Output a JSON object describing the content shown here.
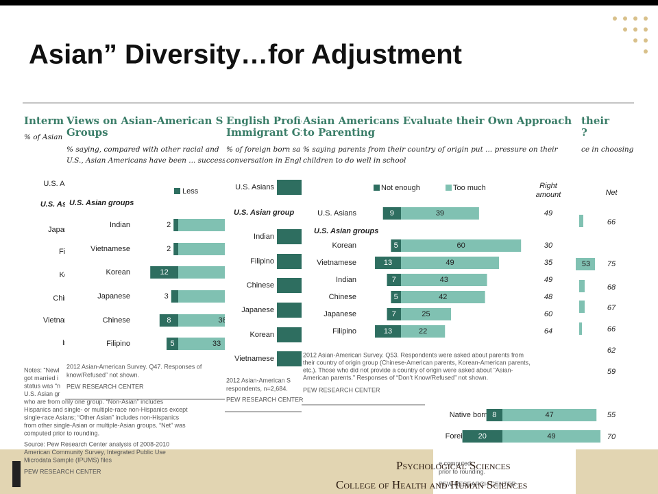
{
  "slide": {
    "title": "Asian” Diversity…for Adjustment",
    "footer_line1": "Psychological Sciences",
    "footer_line2": "College of Health and Human Sciences"
  },
  "background_panel": {
    "title_fragment": "Interm",
    "subtitle_fragment": "% of Asian i",
    "rows": [
      "U.S. As",
      "U.S. Asi",
      "Japan",
      "Fili",
      "Ko",
      "Chin",
      "Vietnan",
      "In"
    ],
    "notes": [
      "Notes: “Newl",
      "got married i",
      "status was “n",
      "U.S. Asian gr",
      "who are from only one group. “Non-Asian” includes",
      "Hispanics and single- or multiple-race non-Hispanics except",
      "single-race Asians; “Other Asian” includes non-Hispanics",
      "from other single-Asian or multiple-Asian groups. “Net” was",
      "computed prior to rounding."
    ],
    "source": [
      "Source: Pew Research Center analysis of 2008-2010",
      "American Community Survey, Integrated Public Use",
      "Microdata Sample (IPUMS) files"
    ],
    "credit": "PEW RESEARCH CENTER",
    "right_title": [
      "their",
      "?"
    ],
    "right_subtitle": "ce in choosing",
    "net_label": "Net",
    "net_values": [
      66,
      75,
      68,
      67,
      66,
      62,
      59,
      55,
      70
    ],
    "bar_fragment": 53,
    "bottom_notes": [
      "e computed",
      "prior to rounding."
    ],
    "bottom_credit": "PEW RESEARCH CENTER"
  },
  "english_panel": {
    "title": [
      "English Profic",
      "Immigrant Gr"
    ],
    "subtitle": [
      "% of foreign born sa",
      "conversation in Engl"
    ],
    "rows": [
      "U.S. Asians",
      "U.S. Asian group",
      "Indian",
      "Filipino",
      "Chinese",
      "Japanese",
      "Korean",
      "Vietnamese"
    ],
    "notes": [
      "2012 Asian-American S",
      "respondents, n=2,684."
    ],
    "credit": "PEW RESEARCH CENTER"
  },
  "chart_data": [
    {
      "type": "bar",
      "orientation": "horizontal",
      "title": [
        "Asian Americans Evaluate their Own Approach",
        "to Parenting"
      ],
      "subtitle": [
        "% saying parents from their country of origin put ... pressure on their",
        "children to do well in school"
      ],
      "categories": [
        "U.S. Asians",
        "Korean",
        "Vietnamese",
        "Indian",
        "Chinese",
        "Japanese",
        "Filipino"
      ],
      "group_label": "U.S. Asian groups",
      "series": [
        {
          "name": "Not enough",
          "color": "#2e6e60",
          "values": [
            9,
            5,
            13,
            7,
            5,
            7,
            13
          ]
        },
        {
          "name": "Too much",
          "color": "#80c1b2",
          "values": [
            39,
            60,
            49,
            43,
            42,
            25,
            22
          ]
        }
      ],
      "right_amount": {
        "label": [
          "Right",
          "amount"
        ],
        "values": [
          49,
          30,
          35,
          49,
          48,
          60,
          64
        ]
      },
      "notes": [
        "2012 Asian-American Survey. Q53. Respondents were asked about parents from",
        "their country of origin group (Chinese-American parents, Korean-American parents,",
        "etc.). Those who did not provide a country of origin were asked about “Asian-",
        "American parents.” Responses of “Don’t Know/Refused” not shown."
      ],
      "credit": "PEW RESEARCH CENTER"
    },
    {
      "type": "bar",
      "orientation": "horizontal",
      "categories": [
        "Native born",
        "Foreign born"
      ],
      "series": [
        {
          "color": "#2e6e60",
          "values": [
            8,
            20
          ]
        },
        {
          "color": "#80c1b2",
          "values": [
            47,
            49
          ]
        }
      ]
    },
    {
      "type": "bar",
      "orientation": "horizontal",
      "title": [
        "Views on Asian-American S",
        "Groups"
      ],
      "subtitle": [
        "% saying, compared with other racial and",
        "U.S., Asian Americans have been ... success"
      ],
      "categories": [
        "Indian",
        "Vietnamese",
        "Korean",
        "Japanese",
        "Chinese",
        "Filipino"
      ],
      "group_label": "U.S. Asian groups",
      "series": [
        {
          "name": "Less",
          "color": "#2e6e60",
          "values": [
            2,
            2,
            12,
            3,
            8,
            5
          ]
        },
        {
          "color": "#80c1b2",
          "values": [
            null,
            null,
            null,
            null,
            38,
            33
          ]
        }
      ],
      "notes": [
        "2012 Asian-American Survey. Q47. Responses of",
        "know/Refused” not shown."
      ],
      "credit": "PEW RESEARCH CENTER"
    }
  ]
}
